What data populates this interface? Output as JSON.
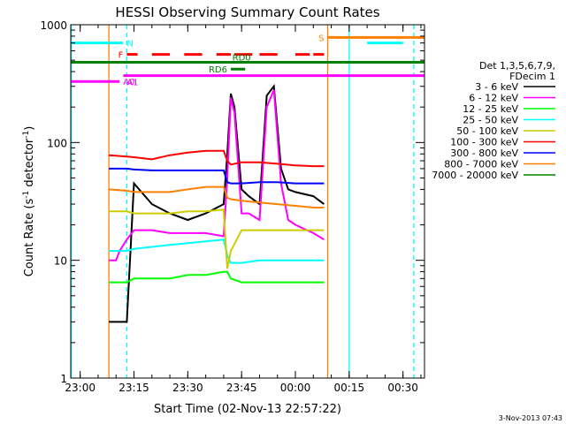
{
  "chart_data": {
    "type": "line",
    "title": "HESSI Observing Summary Count Rates",
    "xlabel": "Start Time (02-Nov-13 22:57:22)",
    "ylabel_main": "Count Rate (s",
    "ylabel_sup1": "-1",
    "ylabel_mid": " detector",
    "ylabel_sup2": "-1",
    "ylabel_end": ")",
    "x_start": "2013-11-02 22:57:22",
    "xlim": [
      "22:57:22",
      "00:36:00"
    ],
    "ylim": [
      1,
      1000
    ],
    "yscale": "log",
    "xtick_labels": [
      "23:00",
      "23:15",
      "23:30",
      "23:45",
      "00:00",
      "00:15",
      "00:30"
    ],
    "ytick_labels": [
      "1",
      "10",
      "100",
      "1000"
    ],
    "timestamp": "3-Nov-2013 07:43",
    "legend": {
      "header": [
        "Det 1,3,5,6,7,9,",
        "FDecim 1"
      ],
      "placement": "right"
    },
    "series": [
      {
        "name": "3 - 6 keV",
        "color": "#000000",
        "x": [
          "23:08",
          "23:10",
          "23:11",
          "23:13",
          "23:15",
          "23:20",
          "23:25",
          "23:30",
          "23:35",
          "23:40",
          "23:41",
          "23:42",
          "23:43",
          "23:45",
          "23:47",
          "23:50",
          "23:52",
          "23:54",
          "23:56",
          "23:58",
          "00:00",
          "00:05",
          "00:08"
        ],
        "y": [
          3,
          3,
          3,
          3,
          45,
          30,
          25,
          22,
          25,
          30,
          80,
          260,
          200,
          40,
          35,
          30,
          250,
          300,
          60,
          40,
          38,
          35,
          30
        ]
      },
      {
        "name": "6 - 12 keV",
        "color": "#ff00ff",
        "x": [
          "23:08",
          "23:10",
          "23:11",
          "23:13",
          "23:15",
          "23:20",
          "23:25",
          "23:30",
          "23:35",
          "23:40",
          "23:41",
          "23:42",
          "23:43",
          "23:45",
          "23:47",
          "23:50",
          "23:52",
          "23:54",
          "23:56",
          "23:58",
          "00:00",
          "00:05",
          "00:08"
        ],
        "y": [
          10,
          10,
          12,
          15,
          18,
          18,
          17,
          17,
          17,
          16,
          50,
          240,
          180,
          25,
          25,
          22,
          200,
          280,
          45,
          22,
          20,
          17,
          15
        ]
      },
      {
        "name": "12 - 25 keV",
        "color": "#00ff00",
        "x": [
          "23:08",
          "23:13",
          "23:15",
          "23:20",
          "23:25",
          "23:30",
          "23:35",
          "23:40",
          "23:41",
          "23:42",
          "23:45",
          "23:50",
          "23:55",
          "00:00",
          "00:05",
          "00:08"
        ],
        "y": [
          6.5,
          6.5,
          7,
          7,
          7,
          7.5,
          7.5,
          8,
          8,
          7,
          6.5,
          6.5,
          6.5,
          6.5,
          6.5,
          6.5
        ]
      },
      {
        "name": "25 - 50 keV",
        "color": "#00ffff",
        "x": [
          "23:08",
          "23:13",
          "23:15",
          "23:20",
          "23:25",
          "23:30",
          "23:35",
          "23:40",
          "23:41",
          "23:42",
          "23:45",
          "23:50",
          "23:55",
          "00:00",
          "00:05",
          "00:08"
        ],
        "y": [
          12,
          12,
          12.5,
          13,
          13.5,
          14,
          14.5,
          15,
          11,
          9.5,
          9.5,
          10,
          10,
          10,
          10,
          10
        ]
      },
      {
        "name": "50 - 100 keV",
        "color": "#cccc00",
        "x": [
          "23:08",
          "23:13",
          "23:15",
          "23:20",
          "23:25",
          "23:30",
          "23:35",
          "23:40",
          "23:41",
          "23:42",
          "23:45",
          "23:50",
          "23:55",
          "00:00",
          "00:05",
          "00:08"
        ],
        "y": [
          26,
          26,
          25,
          25,
          25,
          26,
          26,
          27,
          8.5,
          12,
          18,
          18,
          18,
          18,
          18,
          18
        ]
      },
      {
        "name": "100 - 300 keV",
        "color": "#ff0000",
        "x": [
          "23:08",
          "23:13",
          "23:15",
          "23:20",
          "23:25",
          "23:30",
          "23:35",
          "23:40",
          "23:41",
          "23:42",
          "23:45",
          "23:50",
          "23:55",
          "00:00",
          "00:05",
          "00:08"
        ],
        "y": [
          78,
          76,
          75,
          72,
          78,
          82,
          85,
          85,
          70,
          65,
          68,
          68,
          66,
          64,
          63,
          63
        ]
      },
      {
        "name": "300 - 800 keV",
        "color": "#0000ff",
        "x": [
          "23:08",
          "23:13",
          "23:15",
          "23:20",
          "23:25",
          "23:30",
          "23:35",
          "23:40",
          "23:41",
          "23:42",
          "23:45",
          "23:50",
          "23:55",
          "00:00",
          "00:05",
          "00:08"
        ],
        "y": [
          60,
          60,
          59,
          58,
          58,
          58,
          58,
          58,
          46,
          45,
          45,
          46,
          46,
          45,
          45,
          45
        ]
      },
      {
        "name": "800 - 7000 keV",
        "color": "#ff8000",
        "x": [
          "23:08",
          "23:13",
          "23:15",
          "23:20",
          "23:25",
          "23:30",
          "23:35",
          "23:40",
          "23:41",
          "23:42",
          "23:45",
          "23:50",
          "23:55",
          "00:00",
          "00:05",
          "00:08"
        ],
        "y": [
          40,
          39,
          38,
          38,
          38,
          40,
          42,
          42,
          34,
          33,
          32,
          31,
          30,
          29,
          28,
          28
        ]
      },
      {
        "name": "7000 - 20000 keV",
        "color": "#008000",
        "x": [],
        "y": []
      }
    ],
    "flags": [
      {
        "name": "N",
        "color": "#00ffff",
        "level": 700,
        "label_side": "right",
        "segments": [
          [
            "22:57:22",
            "23:12"
          ],
          [
            "00:20",
            "00:30"
          ]
        ],
        "dashed": false
      },
      {
        "name": "F",
        "color": "#ff0000",
        "level": 560,
        "label_side": "left",
        "segments": [
          [
            "23:13",
            "23:16"
          ],
          [
            "23:20",
            "23:25"
          ],
          [
            "23:29",
            "23:34"
          ],
          [
            "23:38",
            "23:42"
          ],
          [
            "23:43",
            "23:48"
          ],
          [
            "23:50",
            "23:55"
          ],
          [
            "00:00",
            "00:04"
          ],
          [
            "00:05",
            "00:08"
          ]
        ],
        "dashed": false
      },
      {
        "name": "RD0",
        "color": "#008000",
        "level": 480,
        "label_side": "above",
        "segments": [
          [
            "22:57:22",
            "00:36:00"
          ]
        ],
        "dashed": false
      },
      {
        "name": "RD6",
        "color": "#008000",
        "level": 420,
        "label_side": "left",
        "segments": [
          [
            "23:42",
            "23:46"
          ]
        ],
        "dashed": false
      },
      {
        "name": "A0",
        "color": "#ff00ff",
        "level": 330,
        "label_side": "right",
        "segments": [
          [
            "22:57:22",
            "23:11"
          ]
        ],
        "dashed": false
      },
      {
        "name": "A1",
        "color": "#ff00ff",
        "level": 370,
        "label_side": "below",
        "segments": [
          [
            "23:12",
            "00:36:00"
          ]
        ],
        "dashed": false
      },
      {
        "name": "S",
        "color": "#ff8000",
        "level": 780,
        "label_side": "left",
        "segments": [
          [
            "00:09",
            "00:36:00"
          ]
        ],
        "dashed": false
      }
    ],
    "vlines": [
      {
        "time": "22:57:30",
        "color": "#00ffff",
        "dashed": false
      },
      {
        "time": "23:08",
        "color": "#ff8000",
        "dashed": false
      },
      {
        "time": "23:13",
        "color": "#00ffff",
        "dashed": true
      },
      {
        "time": "00:09",
        "color": "#ff8000",
        "dashed": false
      },
      {
        "time": "00:15",
        "color": "#00ffff",
        "dashed": false
      },
      {
        "time": "00:33",
        "color": "#00ffff",
        "dashed": true
      }
    ]
  }
}
